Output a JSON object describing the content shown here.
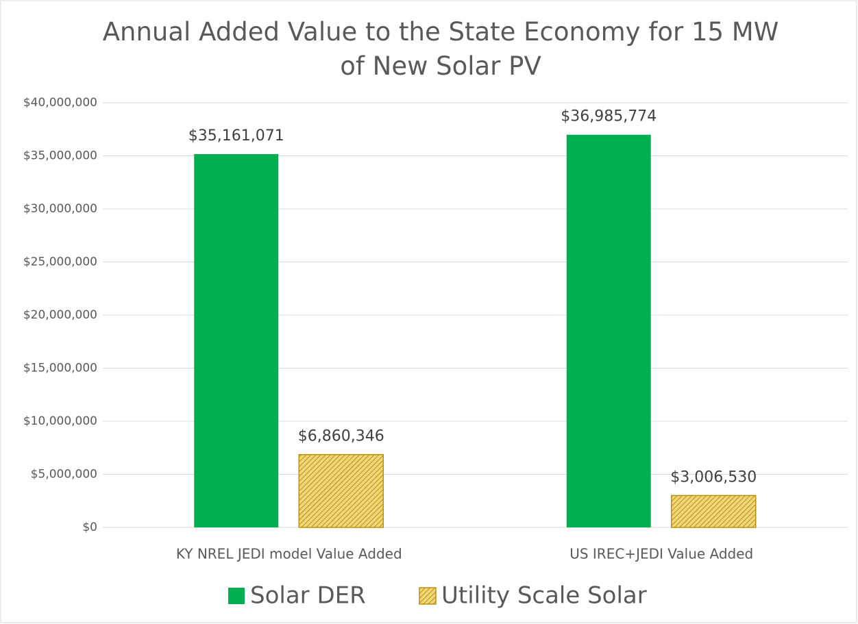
{
  "chart_data": {
    "type": "bar",
    "title": "Annual Added Value to the State Economy for 15 MW of New Solar PV",
    "categories": [
      "KY NREL JEDI model Value Added",
      "US IREC+JEDI Value Added"
    ],
    "series": [
      {
        "name": "Solar DER",
        "color": "#00b050",
        "values": [
          35161071,
          36985774
        ],
        "value_labels": [
          "$35,161,071",
          "$36,985,774"
        ]
      },
      {
        "name": "Utility Scale Solar",
        "color": "#e6c24a",
        "hatch": true,
        "values": [
          6860346,
          3006530
        ],
        "value_labels": [
          "$6,860,346",
          "$3,006,530"
        ]
      }
    ],
    "ylim": [
      0,
      40000000
    ],
    "yticks": [
      {
        "value": 0,
        "label": "$0"
      },
      {
        "value": 5000000,
        "label": "$5,000,000"
      },
      {
        "value": 10000000,
        "label": "$10,000,000"
      },
      {
        "value": 15000000,
        "label": "$15,000,000"
      },
      {
        "value": 20000000,
        "label": "$20,000,000"
      },
      {
        "value": 25000000,
        "label": "$25,000,000"
      },
      {
        "value": 30000000,
        "label": "$30,000,000"
      },
      {
        "value": 35000000,
        "label": "$35,000,000"
      },
      {
        "value": 40000000,
        "label": "$40,000,000"
      }
    ],
    "grid": true,
    "legend": "bottom"
  }
}
